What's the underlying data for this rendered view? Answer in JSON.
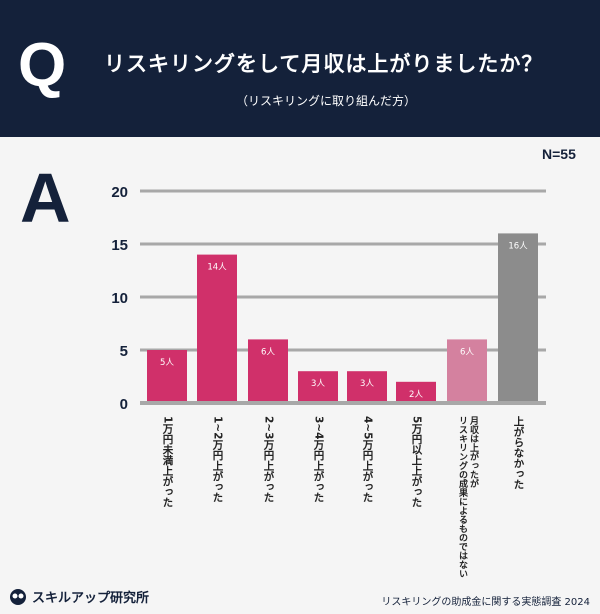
{
  "header": {
    "q_mark": "Q",
    "title": "リスキリングをして月収は上がりましたか？",
    "subtitle": "（リスキリングに取り組んだ方）"
  },
  "answer_mark": "A",
  "sample_size": "N=55",
  "chart_data": {
    "type": "bar",
    "categories": [
      "1万円未満上がった",
      "1~2万円上がった",
      "2~3万円上がった",
      "3~4万円上がった",
      "4~5万円上がった",
      "5万円以上上がった",
      "月収は上がったが|リスキリングの成果によるものではない",
      "上がらなかった"
    ],
    "values": [
      5,
      14,
      6,
      3,
      3,
      2,
      6,
      16
    ],
    "data_labels": [
      "5人",
      "14人",
      "6人",
      "3人",
      "3人",
      "2人",
      "6人",
      "16人"
    ],
    "colors": [
      "#d0306a",
      "#d0306a",
      "#d0306a",
      "#d0306a",
      "#d0306a",
      "#d0306a",
      "#d4819f",
      "#8c8c8c"
    ],
    "ylim": [
      0,
      20
    ],
    "yticks": [
      0,
      5,
      10,
      15,
      20
    ],
    "grid": true
  },
  "footer": {
    "brand": "スキルアップ研究所",
    "source": "リスキリングの助成金に関する実態調査 2024"
  }
}
